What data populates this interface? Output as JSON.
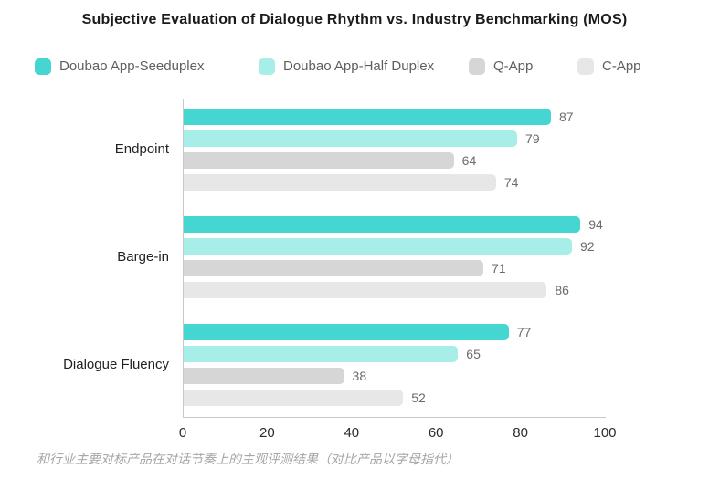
{
  "title": "Subjective Evaluation of Dialogue Rhythm vs. Industry Benchmarking (MOS)",
  "legend": {
    "items": [
      {
        "label": "Doubao App-Seeduplex",
        "color": "#45d6d2"
      },
      {
        "label": "Doubao App-Half Duplex",
        "color": "#a8eee8"
      },
      {
        "label": "Q-App",
        "color": "#d6d6d6"
      },
      {
        "label": "C-App",
        "color": "#e7e7e7"
      }
    ]
  },
  "chart_data": {
    "type": "bar",
    "orientation": "horizontal",
    "title": "Subjective Evaluation of Dialogue Rhythm vs. Industry Benchmarking (MOS)",
    "categories": [
      "Endpoint",
      "Barge-in",
      "Dialogue Fluency"
    ],
    "series": [
      {
        "name": "Doubao App-Seeduplex",
        "color": "#45d6d2",
        "values": [
          87,
          94,
          77
        ]
      },
      {
        "name": "Doubao App-Half Duplex",
        "color": "#a8eee8",
        "values": [
          79,
          92,
          65
        ]
      },
      {
        "name": "Q-App",
        "color": "#d6d6d6",
        "values": [
          64,
          71,
          38
        ]
      },
      {
        "name": "C-App",
        "color": "#e7e7e7",
        "values": [
          74,
          86,
          52
        ]
      }
    ],
    "xlim": [
      0,
      100
    ],
    "xticks": [
      0,
      20,
      40,
      60,
      80,
      100
    ],
    "xlabel": "",
    "ylabel": "",
    "grid": false,
    "legend_position": "top",
    "value_labels": true
  },
  "footer": {
    "caption": "和行业主要对标产品在对话节奏上的主观评测结果（对比产品以字母指代）"
  },
  "colors": {
    "background": "#ffffff",
    "title_text": "#1b1b1b",
    "category_text": "#222222",
    "value_text": "#6b6b6b",
    "tick_text": "#2b2b2b",
    "legend_text": "#5e5e5e",
    "axis_line": "#c9c9c9",
    "footer_text": "#a6a6a6"
  }
}
